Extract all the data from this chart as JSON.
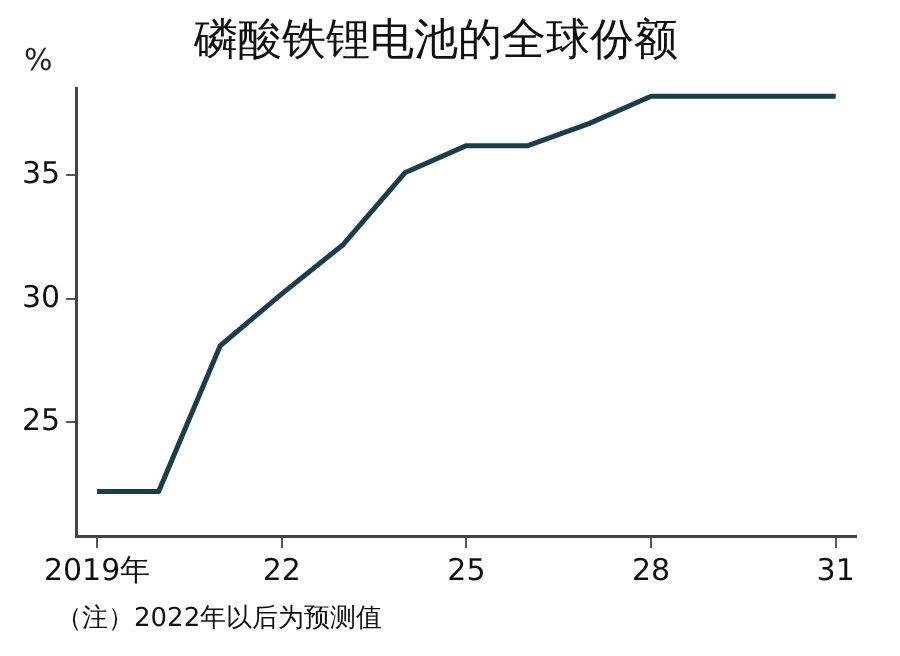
{
  "chart_data": {
    "type": "line",
    "title": "磷酸铁锂电池的全球份额",
    "ylabel": "%",
    "annotations": [
      "（注）2022年以后为预测值"
    ],
    "x": [
      2019,
      2020,
      2021,
      2022,
      2023,
      2024,
      2025,
      2026,
      2027,
      2028,
      2029,
      2030,
      2031
    ],
    "series": [
      {
        "color": "#1c3d47",
        "values": [
          22.2,
          22.2,
          28.1,
          30.2,
          32.2,
          35.1,
          36.2,
          36.2,
          37.1,
          38.2,
          38.2,
          38.2,
          38.2
        ]
      }
    ],
    "xlim": [
      2018.66,
      2031.33
    ],
    "xticks": [
      {
        "value": 2019,
        "label": "2019年"
      },
      {
        "value": 2022,
        "label": "22"
      },
      {
        "value": 2025,
        "label": "25"
      },
      {
        "value": 2028,
        "label": "28"
      },
      {
        "value": 2031,
        "label": "31"
      }
    ],
    "ylim": [
      20.4,
      38.5
    ],
    "yticks": [
      25,
      30,
      35
    ],
    "grid": false,
    "legend": false,
    "marker": "none",
    "line_style": "solid"
  }
}
